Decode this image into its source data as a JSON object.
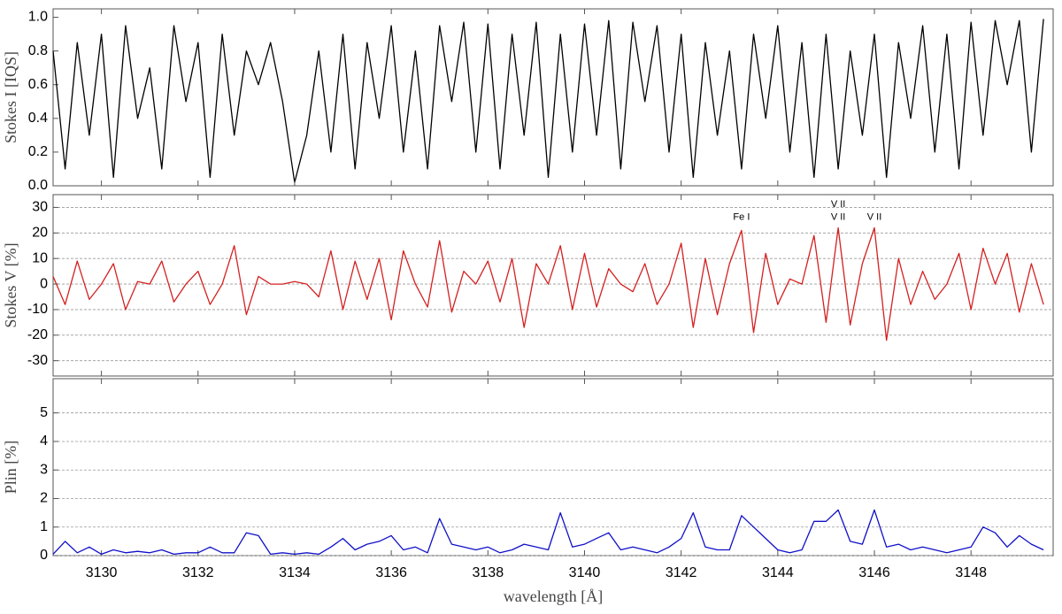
{
  "chart_data": [
    {
      "type": "line",
      "ylabel": "Stokes I [IQS]",
      "color": "#000000",
      "x": [
        3129,
        3129.25,
        3129.5,
        3129.75,
        3130,
        3130.25,
        3130.5,
        3130.75,
        3131,
        3131.25,
        3131.5,
        3131.75,
        3132,
        3132.25,
        3132.5,
        3132.75,
        3133,
        3133.25,
        3133.5,
        3133.75,
        3134,
        3134.25,
        3134.5,
        3134.75,
        3135,
        3135.25,
        3135.5,
        3135.75,
        3136,
        3136.25,
        3136.5,
        3136.75,
        3137,
        3137.25,
        3137.5,
        3137.75,
        3138,
        3138.25,
        3138.5,
        3138.75,
        3139,
        3139.25,
        3139.5,
        3139.75,
        3140,
        3140.25,
        3140.5,
        3140.75,
        3141,
        3141.25,
        3141.5,
        3141.75,
        3142,
        3142.25,
        3142.5,
        3142.75,
        3143,
        3143.25,
        3143.5,
        3143.75,
        3144,
        3144.25,
        3144.5,
        3144.75,
        3145,
        3145.25,
        3145.5,
        3145.75,
        3146,
        3146.25,
        3146.5,
        3146.75,
        3147,
        3147.25,
        3147.5,
        3147.75,
        3148,
        3148.25,
        3148.5,
        3148.75,
        3149,
        3149.25,
        3149.5
      ],
      "values": [
        0.8,
        0.1,
        0.85,
        0.3,
        0.9,
        0.05,
        0.95,
        0.4,
        0.7,
        0.1,
        0.95,
        0.5,
        0.85,
        0.05,
        0.9,
        0.3,
        0.8,
        0.6,
        0.85,
        0.5,
        0.02,
        0.3,
        0.8,
        0.2,
        0.9,
        0.1,
        0.85,
        0.4,
        0.95,
        0.2,
        0.8,
        0.1,
        0.95,
        0.5,
        0.97,
        0.2,
        0.96,
        0.1,
        0.9,
        0.3,
        0.97,
        0.05,
        0.9,
        0.2,
        0.96,
        0.3,
        0.98,
        0.1,
        0.97,
        0.5,
        0.95,
        0.2,
        0.9,
        0.05,
        0.85,
        0.3,
        0.8,
        0.1,
        0.9,
        0.4,
        0.95,
        0.2,
        0.85,
        0.05,
        0.9,
        0.1,
        0.8,
        0.3,
        0.9,
        0.05,
        0.85,
        0.4,
        0.95,
        0.2,
        0.9,
        0.1,
        0.97,
        0.3,
        0.98,
        0.6,
        0.98,
        0.2,
        0.99
      ],
      "xlim": [
        3129,
        3149.7
      ],
      "ylim": [
        0,
        1.05
      ],
      "yticks": [
        {
          "value": 0,
          "label": "0.0"
        },
        {
          "value": 0.2,
          "label": "0.2"
        },
        {
          "value": 0.4,
          "label": "0.4"
        },
        {
          "value": 0.6,
          "label": "0.6"
        },
        {
          "value": 0.8,
          "label": "0.8"
        },
        {
          "value": 1,
          "label": "1.0"
        }
      ],
      "grid": false
    },
    {
      "type": "line",
      "ylabel": "Stokes V [%]",
      "color": "#d42020",
      "x": [
        3129,
        3129.25,
        3129.5,
        3129.75,
        3130,
        3130.25,
        3130.5,
        3130.75,
        3131,
        3131.25,
        3131.5,
        3131.75,
        3132,
        3132.25,
        3132.5,
        3132.75,
        3133,
        3133.25,
        3133.5,
        3133.75,
        3134,
        3134.25,
        3134.5,
        3134.75,
        3135,
        3135.25,
        3135.5,
        3135.75,
        3136,
        3136.25,
        3136.5,
        3136.75,
        3137,
        3137.25,
        3137.5,
        3137.75,
        3138,
        3138.25,
        3138.5,
        3138.75,
        3139,
        3139.25,
        3139.5,
        3139.75,
        3140,
        3140.25,
        3140.5,
        3140.75,
        3141,
        3141.25,
        3141.5,
        3141.75,
        3142,
        3142.25,
        3142.5,
        3142.75,
        3143,
        3143.25,
        3143.5,
        3143.75,
        3144,
        3144.25,
        3144.5,
        3144.75,
        3145,
        3145.25,
        3145.5,
        3145.75,
        3146,
        3146.25,
        3146.5,
        3146.75,
        3147,
        3147.25,
        3147.5,
        3147.75,
        3148,
        3148.25,
        3148.5,
        3148.75,
        3149,
        3149.25,
        3149.5
      ],
      "values": [
        3,
        -8,
        9,
        -6,
        0,
        8,
        -10,
        1,
        0,
        9,
        -7,
        0,
        5,
        -8,
        0,
        15,
        -12,
        3,
        0,
        0,
        1,
        0,
        -5,
        13,
        -10,
        9,
        -6,
        10,
        -14,
        13,
        0,
        -9,
        17,
        -11,
        5,
        0,
        9,
        -7,
        10,
        -17,
        8,
        0,
        15,
        -10,
        12,
        -9,
        6,
        0,
        -3,
        8,
        -8,
        0,
        16,
        -17,
        10,
        -12,
        8,
        21,
        -19,
        12,
        -8,
        2,
        0,
        19,
        -15,
        22,
        -16,
        8,
        22,
        -22,
        10,
        -8,
        5,
        -6,
        0,
        12,
        -10,
        14,
        0,
        12,
        -11,
        8,
        -8
      ],
      "xlim": [
        3129,
        3149.7
      ],
      "ylim": [
        -36,
        35
      ],
      "yticks": [
        -30,
        -20,
        -10,
        0,
        10,
        20,
        30
      ],
      "grid": true,
      "annotations": [
        {
          "text": "Fe I",
          "x": 3143.25,
          "y": 22
        },
        {
          "text": "V II",
          "x": 3145.25,
          "y": 27
        },
        {
          "text": "V II",
          "x": 3145.25,
          "y": 22
        },
        {
          "text": "V II",
          "x": 3146,
          "y": 22
        }
      ]
    },
    {
      "type": "line",
      "ylabel": "Plin [%]",
      "xlabel": "wavelength [Å]",
      "color": "#1010c8",
      "x": [
        3129,
        3129.25,
        3129.5,
        3129.75,
        3130,
        3130.25,
        3130.5,
        3130.75,
        3131,
        3131.25,
        3131.5,
        3131.75,
        3132,
        3132.25,
        3132.5,
        3132.75,
        3133,
        3133.25,
        3133.5,
        3133.75,
        3134,
        3134.25,
        3134.5,
        3134.75,
        3135,
        3135.25,
        3135.5,
        3135.75,
        3136,
        3136.25,
        3136.5,
        3136.75,
        3137,
        3137.25,
        3137.5,
        3137.75,
        3138,
        3138.25,
        3138.5,
        3138.75,
        3139,
        3139.25,
        3139.5,
        3139.75,
        3140,
        3140.25,
        3140.5,
        3140.75,
        3141,
        3141.25,
        3141.5,
        3141.75,
        3142,
        3142.25,
        3142.5,
        3142.75,
        3143,
        3143.25,
        3143.5,
        3143.75,
        3144,
        3144.25,
        3144.5,
        3144.75,
        3145,
        3145.25,
        3145.5,
        3145.75,
        3146,
        3146.25,
        3146.5,
        3146.75,
        3147,
        3147.25,
        3147.5,
        3147.75,
        3148,
        3148.25,
        3148.5,
        3148.75,
        3149,
        3149.25,
        3149.5
      ],
      "values": [
        0.05,
        0.5,
        0.1,
        0.3,
        0.05,
        0.2,
        0.1,
        0.15,
        0.1,
        0.2,
        0.05,
        0.1,
        0.1,
        0.3,
        0.1,
        0.1,
        0.8,
        0.7,
        0.05,
        0.1,
        0.05,
        0.1,
        0.05,
        0.3,
        0.6,
        0.2,
        0.4,
        0.5,
        0.7,
        0.2,
        0.3,
        0.1,
        1.3,
        0.4,
        0.3,
        0.2,
        0.3,
        0.1,
        0.2,
        0.4,
        0.3,
        0.2,
        1.5,
        0.3,
        0.4,
        0.6,
        0.8,
        0.2,
        0.3,
        0.2,
        0.1,
        0.3,
        0.6,
        1.5,
        0.3,
        0.2,
        0.2,
        1.4,
        1.0,
        0.6,
        0.2,
        0.1,
        0.2,
        1.2,
        1.2,
        1.6,
        0.5,
        0.4,
        1.6,
        0.3,
        0.4,
        0.2,
        0.3,
        0.2,
        0.1,
        0.2,
        0.3,
        1.0,
        0.8,
        0.3,
        0.7,
        0.4,
        0.2
      ],
      "xlim": [
        3129,
        3149.7
      ],
      "ylim": [
        0,
        6.2
      ],
      "xticks": [
        3130,
        3132,
        3134,
        3136,
        3138,
        3140,
        3142,
        3144,
        3146,
        3148
      ],
      "yticks": [
        0,
        1,
        2,
        3,
        4,
        5
      ],
      "grid": true
    }
  ]
}
